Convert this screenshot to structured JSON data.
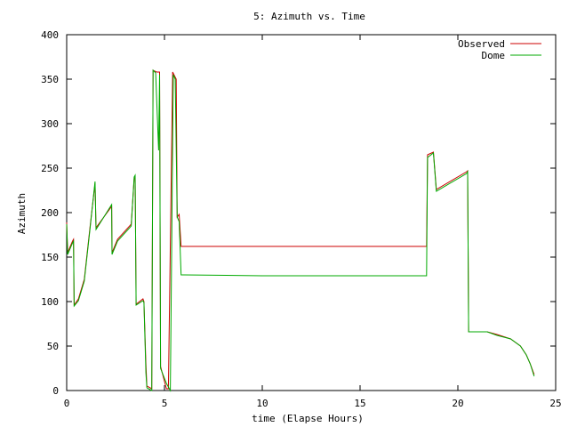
{
  "chart_data": {
    "type": "line",
    "title": "5: Azimuth vs. Time",
    "xlabel": "time (Elapse Hours)",
    "ylabel": "Azimuth",
    "xlim": [
      0,
      25
    ],
    "ylim": [
      0,
      400
    ],
    "xticks": [
      0,
      5,
      10,
      15,
      20,
      25
    ],
    "yticks": [
      0,
      50,
      100,
      150,
      200,
      250,
      300,
      350,
      400
    ],
    "grid": false,
    "legend_position": "top-right",
    "series": [
      {
        "name": "Observed",
        "color": "#cc0000",
        "points": [
          [
            0,
            189
          ],
          [
            0.05,
            155
          ],
          [
            0.3,
            168
          ],
          [
            0.35,
            170
          ],
          [
            0.38,
            96
          ],
          [
            0.6,
            103
          ],
          [
            0.9,
            125
          ],
          [
            1.2,
            185
          ],
          [
            1.45,
            233
          ],
          [
            1.5,
            183
          ],
          [
            2.3,
            207
          ],
          [
            2.32,
            155
          ],
          [
            2.6,
            170
          ],
          [
            3.3,
            187
          ],
          [
            3.45,
            238
          ],
          [
            3.5,
            240
          ],
          [
            3.55,
            97
          ],
          [
            3.9,
            103
          ],
          [
            3.95,
            100
          ],
          [
            4.05,
            30
          ],
          [
            4.1,
            5
          ],
          [
            4.35,
            2
          ],
          [
            4.42,
            360
          ],
          [
            4.6,
            358
          ],
          [
            4.75,
            358
          ],
          [
            4.8,
            27
          ],
          [
            5.1,
            2
          ],
          [
            5.2,
            2
          ],
          [
            5.42,
            358
          ],
          [
            5.6,
            350
          ],
          [
            5.65,
            195
          ],
          [
            5.75,
            198
          ],
          [
            5.85,
            162
          ],
          [
            6.0,
            162
          ],
          [
            18.4,
            162
          ],
          [
            18.45,
            265
          ],
          [
            18.75,
            268
          ],
          [
            18.9,
            226
          ],
          [
            20.45,
            246
          ],
          [
            20.5,
            247
          ],
          [
            20.55,
            66
          ],
          [
            21.5,
            66
          ],
          [
            22,
            63
          ],
          [
            22.7,
            58
          ],
          [
            23.2,
            50
          ],
          [
            23.5,
            40
          ],
          [
            23.7,
            30
          ],
          [
            23.9,
            18
          ]
        ]
      },
      {
        "name": "Dome",
        "color": "#00aa00",
        "points": [
          [
            0,
            187
          ],
          [
            0.05,
            153
          ],
          [
            0.3,
            166
          ],
          [
            0.35,
            168
          ],
          [
            0.38,
            95
          ],
          [
            0.6,
            101
          ],
          [
            0.9,
            123
          ],
          [
            1.2,
            183
          ],
          [
            1.45,
            235
          ],
          [
            1.5,
            181
          ],
          [
            2.3,
            209
          ],
          [
            2.32,
            153
          ],
          [
            2.6,
            168
          ],
          [
            3.3,
            185
          ],
          [
            3.45,
            240
          ],
          [
            3.5,
            242
          ],
          [
            3.55,
            96
          ],
          [
            3.9,
            101
          ],
          [
            3.95,
            99
          ],
          [
            4.05,
            20
          ],
          [
            4.1,
            3
          ],
          [
            4.35,
            0
          ],
          [
            4.42,
            360
          ],
          [
            4.55,
            357
          ],
          [
            4.7,
            270
          ],
          [
            4.75,
            355
          ],
          [
            4.8,
            25
          ],
          [
            5.1,
            8
          ],
          [
            5.3,
            0
          ],
          [
            5.45,
            355
          ],
          [
            5.55,
            350
          ],
          [
            5.65,
            195
          ],
          [
            5.75,
            190
          ],
          [
            5.85,
            130
          ],
          [
            6.0,
            130
          ],
          [
            10,
            129
          ],
          [
            18.4,
            129
          ],
          [
            18.45,
            262
          ],
          [
            18.75,
            267
          ],
          [
            18.9,
            224
          ],
          [
            20.45,
            244
          ],
          [
            20.5,
            246
          ],
          [
            20.55,
            66
          ],
          [
            21.5,
            66
          ],
          [
            22,
            62
          ],
          [
            22.7,
            58
          ],
          [
            23.2,
            50
          ],
          [
            23.5,
            40
          ],
          [
            23.7,
            30
          ],
          [
            23.9,
            16
          ]
        ]
      }
    ]
  }
}
